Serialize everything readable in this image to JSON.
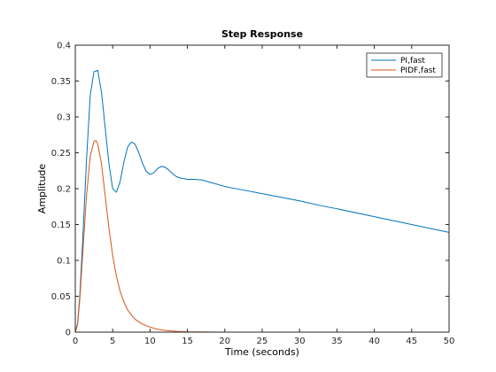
{
  "chart_data": {
    "type": "line",
    "title": "Step Response",
    "xlabel": "Time (seconds)",
    "ylabel": "Amplitude",
    "xlim": [
      0,
      50
    ],
    "ylim": [
      0,
      0.4
    ],
    "x_ticks": [
      0,
      5,
      10,
      15,
      20,
      25,
      30,
      35,
      40,
      45,
      50
    ],
    "y_ticks": [
      0,
      0.05,
      0.1,
      0.15,
      0.2,
      0.25,
      0.3,
      0.35,
      0.4
    ],
    "x_tick_labels": [
      "0",
      "5",
      "10",
      "15",
      "20",
      "25",
      "30",
      "35",
      "40",
      "45",
      "50"
    ],
    "y_tick_labels": [
      "0",
      "0.05",
      "0.1",
      "0.15",
      "0.2",
      "0.25",
      "0.3",
      "0.35",
      "0.4"
    ],
    "grid": false,
    "legend_position": "top-right",
    "reference_line": {
      "y": 0,
      "style": "dotted",
      "color": "#000000"
    },
    "series": [
      {
        "name": "PI,fast",
        "color": "#0072BD",
        "x": [
          0,
          0.3,
          0.6,
          1.0,
          1.5,
          2.0,
          2.5,
          3.0,
          3.5,
          4.0,
          4.5,
          5.0,
          5.5,
          6.0,
          6.5,
          7.0,
          7.5,
          8.0,
          8.5,
          9.0,
          9.5,
          10.0,
          10.5,
          11.0,
          11.5,
          12.0,
          12.5,
          13.0,
          13.5,
          14.0,
          14.5,
          15.0,
          16.0,
          17.0,
          18.0,
          19.0,
          20.0,
          21.0,
          22.0,
          23.0,
          24.0,
          25.0,
          27.0,
          30.0,
          33.0,
          35.0,
          40.0,
          45.0,
          50.0
        ],
        "y": [
          0,
          0.012,
          0.05,
          0.13,
          0.24,
          0.33,
          0.363,
          0.365,
          0.335,
          0.285,
          0.235,
          0.2,
          0.195,
          0.21,
          0.237,
          0.258,
          0.265,
          0.262,
          0.25,
          0.235,
          0.224,
          0.22,
          0.222,
          0.228,
          0.231,
          0.23,
          0.226,
          0.221,
          0.217,
          0.215,
          0.214,
          0.213,
          0.213,
          0.212,
          0.209,
          0.206,
          0.203,
          0.201,
          0.199,
          0.197,
          0.195,
          0.193,
          0.189,
          0.183,
          0.176,
          0.172,
          0.161,
          0.15,
          0.139
        ]
      },
      {
        "name": "PIDF,fast",
        "color": "#D95319",
        "x": [
          0,
          0.3,
          0.6,
          1.0,
          1.5,
          2.0,
          2.5,
          2.8,
          3.0,
          3.5,
          4.0,
          4.5,
          5.0,
          5.5,
          6.0,
          6.5,
          7.0,
          7.5,
          8.0,
          9.0,
          10.0,
          11.0,
          12.0,
          13.0,
          14.0,
          15.0,
          20.0,
          30.0,
          40.0,
          50.0
        ],
        "y": [
          0,
          0.01,
          0.045,
          0.11,
          0.19,
          0.245,
          0.266,
          0.267,
          0.262,
          0.235,
          0.19,
          0.145,
          0.107,
          0.078,
          0.057,
          0.042,
          0.031,
          0.024,
          0.018,
          0.011,
          0.007,
          0.004,
          0.0025,
          0.0015,
          0.0008,
          0.0004,
          0.0,
          0.0,
          0.0,
          0.0
        ]
      }
    ]
  }
}
